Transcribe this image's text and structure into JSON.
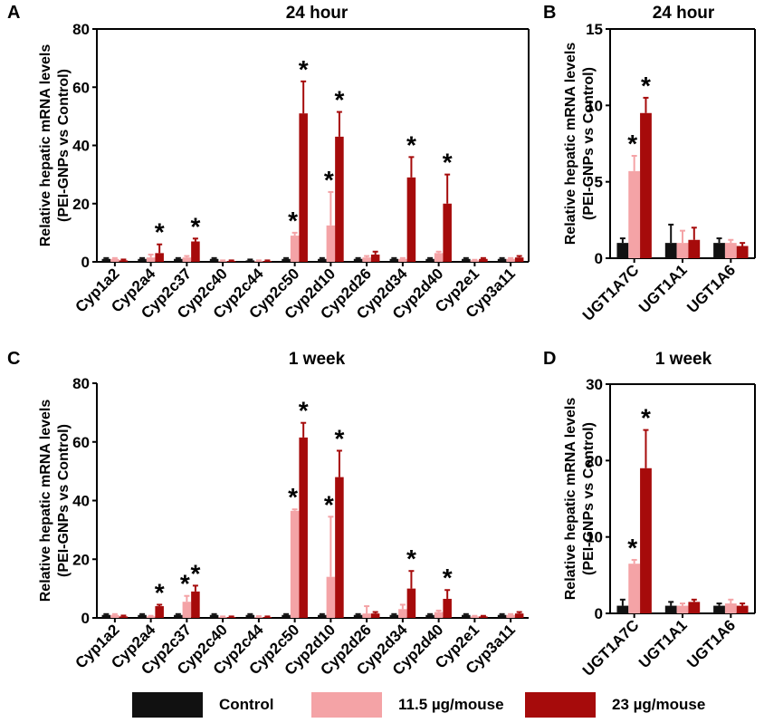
{
  "colors": {
    "control": "#111111",
    "low": "#f4a3a6",
    "high": "#a60b0b"
  },
  "legend": [
    {
      "label": "Control",
      "color": "#111111"
    },
    {
      "label": "11.5 µg/mouse",
      "color": "#f4a3a6"
    },
    {
      "label": "23 µg/mouse",
      "color": "#a60b0b"
    }
  ],
  "chart_data": [
    {
      "panel": "A",
      "title": "24 hour",
      "type": "bar",
      "ylabel": "Relative hepatic mRNA levels\n(PEI-GNPs vs Control)",
      "ylim": [
        0,
        80
      ],
      "yticks": [
        0,
        20,
        40,
        60,
        80
      ],
      "categories": [
        "Cyp1a2",
        "Cyp2a4",
        "Cyp2c37",
        "Cyp2c40",
        "Cyp2c44",
        "Cyp2c50",
        "Cyp2d10",
        "Cyp2d26",
        "Cyp2d34",
        "Cyp2d40",
        "Cyp2e1",
        "Cyp3a11"
      ],
      "series": [
        {
          "name": "Control",
          "values": [
            1,
            1,
            1,
            1,
            0.5,
            1,
            1,
            1,
            1,
            1,
            1,
            1
          ],
          "errors": [
            0.3,
            0.3,
            0.3,
            0.3,
            0.3,
            0.3,
            0.3,
            0.3,
            0.3,
            0.3,
            0.3,
            0.3
          ]
        },
        {
          "name": "11.5 µg/mouse",
          "values": [
            1,
            1.5,
            1.5,
            0.3,
            0.3,
            9,
            12.5,
            1.5,
            1,
            3,
            0.5,
            1
          ],
          "errors": [
            0.3,
            1,
            0.5,
            0.2,
            0.2,
            1,
            11.5,
            0.5,
            0.3,
            0.5,
            0.2,
            0.3
          ]
        },
        {
          "name": "23 µg/mouse",
          "values": [
            0.5,
            3,
            7,
            0.3,
            0.3,
            51,
            43,
            2.5,
            29,
            20,
            1,
            1.5
          ],
          "errors": [
            0.3,
            3,
            1,
            0.2,
            0.2,
            11,
            8.5,
            1,
            7,
            10,
            0.3,
            0.5
          ]
        }
      ],
      "stars": [
        "",
        "*",
        "*",
        "",
        "",
        "**",
        "**",
        "",
        "*",
        "*",
        "",
        ""
      ]
    },
    {
      "panel": "B",
      "title": "24 hour",
      "type": "bar",
      "ylabel": "Relative hepatic mRNA levels\n(PEI-GNPs vs Control)",
      "ylim": [
        0,
        15
      ],
      "yticks": [
        0,
        5,
        10,
        15
      ],
      "categories": [
        "UGT1A7C",
        "UGT1A1",
        "UGT1A6"
      ],
      "series": [
        {
          "name": "Control",
          "values": [
            1,
            1,
            1
          ],
          "errors": [
            0.3,
            1.2,
            0.3
          ]
        },
        {
          "name": "11.5 µg/mouse",
          "values": [
            5.7,
            1,
            1
          ],
          "errors": [
            1,
            0.8,
            0.2
          ]
        },
        {
          "name": "23 µg/mouse",
          "values": [
            9.5,
            1.2,
            0.8
          ],
          "errors": [
            1,
            0.8,
            0.2
          ]
        }
      ],
      "stars": [
        "**",
        "",
        ""
      ]
    },
    {
      "panel": "C",
      "title": "1 week",
      "type": "bar",
      "ylabel": "Relative hepatic mRNA levels\n(PEI-GNPs vs Control)",
      "ylim": [
        0,
        80
      ],
      "yticks": [
        0,
        20,
        40,
        60,
        80
      ],
      "categories": [
        "Cyp1a2",
        "Cyp2a4",
        "Cyp2c37",
        "Cyp2c40",
        "Cyp2c44",
        "Cyp2c50",
        "Cyp2d10",
        "Cyp2d26",
        "Cyp2d34",
        "Cyp2d40",
        "Cyp2e1",
        "Cyp3a11"
      ],
      "series": [
        {
          "name": "Control",
          "values": [
            1,
            1,
            1,
            1,
            1,
            1,
            1,
            1,
            1,
            1,
            1,
            1
          ],
          "errors": [
            0.3,
            0.3,
            0.3,
            0.3,
            0.3,
            0.3,
            0.3,
            0.3,
            0.3,
            0.3,
            0.3,
            0.3
          ]
        },
        {
          "name": "11.5 µg/mouse",
          "values": [
            1,
            0.5,
            5.5,
            0.3,
            0.3,
            36.5,
            14,
            1.5,
            3,
            2,
            0.5,
            1
          ],
          "errors": [
            0.3,
            0.2,
            2,
            0.2,
            0.3,
            0.5,
            20.5,
            2.5,
            1.5,
            0.5,
            0.2,
            0.3
          ]
        },
        {
          "name": "23 µg/mouse",
          "values": [
            0.5,
            4,
            9,
            0.3,
            0.3,
            61.5,
            48,
            1.5,
            10,
            6.5,
            0.5,
            1.5
          ],
          "errors": [
            0.3,
            0.5,
            2,
            0.2,
            0.2,
            5,
            9,
            0.5,
            6,
            3,
            0.2,
            0.5
          ]
        }
      ],
      "stars": [
        "",
        "*",
        "**",
        "",
        "",
        "**",
        "**",
        "",
        "*",
        "*",
        "",
        ""
      ]
    },
    {
      "panel": "D",
      "title": "1 week",
      "type": "bar",
      "ylabel": "Relative hepatic mRNA levels\n(PEI-GNPs vs Control)",
      "ylim": [
        0,
        30
      ],
      "yticks": [
        0,
        10,
        20,
        30
      ],
      "categories": [
        "UGT1A7C",
        "UGT1A1",
        "UGT1A6"
      ],
      "series": [
        {
          "name": "Control",
          "values": [
            1,
            1,
            1
          ],
          "errors": [
            0.8,
            0.5,
            0.3
          ]
        },
        {
          "name": "11.5 µg/mouse",
          "values": [
            6.5,
            1,
            1.3
          ],
          "errors": [
            0.5,
            0.3,
            0.5
          ]
        },
        {
          "name": "23 µg/mouse",
          "values": [
            19,
            1.5,
            1
          ],
          "errors": [
            5,
            0.3,
            0.3
          ]
        }
      ],
      "stars": [
        "**",
        "",
        ""
      ]
    }
  ]
}
